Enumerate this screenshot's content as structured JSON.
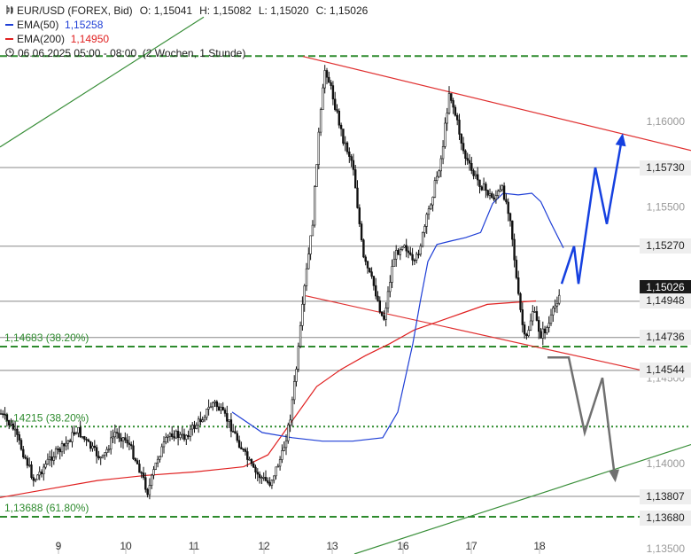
{
  "header": {
    "symbol": "EUR/USD (FOREX, Bid)",
    "ohlc": [
      {
        "k": "O:",
        "v": "1,15041"
      },
      {
        "k": "H:",
        "v": "1,15082"
      },
      {
        "k": "L:",
        "v": "1,15020"
      },
      {
        "k": "C:",
        "v": "1,15026"
      }
    ],
    "ema50_label": "EMA(50)",
    "ema50_value": "1,15258",
    "ema200_label": "EMA(200)",
    "ema200_value": "1,14950",
    "period": "06.06.2025 05:00 - 08:00",
    "range": "(2 Wochen, 1 Stunde)"
  },
  "colors": {
    "price": "#111111",
    "ema50": "#1f3fd6",
    "ema200": "#e02020",
    "fib": "#2e8b2e",
    "projection_up": "#1540e0",
    "projection_down": "#707070",
    "hline": "#888888",
    "trend_green": "#3a8f3a",
    "trend_red": "#e03030"
  },
  "chart_data": {
    "type": "candlestick",
    "x_ticks": [
      "9",
      "10",
      "11",
      "12",
      "13",
      "16",
      "17",
      "18"
    ],
    "y_ticks": [
      "1,16000",
      "1,15500",
      "1,14500",
      "1,14000",
      "1,13500"
    ],
    "y_range": [
      1.1347,
      1.1671
    ],
    "price_path": [
      [
        0,
        1.1429
      ],
      [
        0.5,
        1.142
      ],
      [
        1.0,
        1.1402
      ],
      [
        1.3,
        1.139
      ],
      [
        1.6,
        1.1396
      ],
      [
        2.0,
        1.1404
      ],
      [
        2.5,
        1.141
      ],
      [
        3.0,
        1.142
      ],
      [
        3.5,
        1.141
      ],
      [
        4.0,
        1.1402
      ],
      [
        4.5,
        1.1418
      ],
      [
        5.0,
        1.1413
      ],
      [
        5.5,
        1.1396
      ],
      [
        5.8,
        1.1383
      ],
      [
        6.2,
        1.1404
      ],
      [
        6.7,
        1.1418
      ],
      [
        7.2,
        1.1415
      ],
      [
        7.8,
        1.1424
      ],
      [
        8.4,
        1.1436
      ],
      [
        9.0,
        1.1424
      ],
      [
        9.6,
        1.1406
      ],
      [
        10.0,
        1.1395
      ],
      [
        10.6,
        1.1388
      ],
      [
        11.1,
        1.1405
      ],
      [
        11.4,
        1.1425
      ],
      [
        11.7,
        1.146
      ],
      [
        12.0,
        1.1505
      ],
      [
        12.3,
        1.154
      ],
      [
        12.5,
        1.1585
      ],
      [
        12.8,
        1.1632
      ],
      [
        13.1,
        1.1615
      ],
      [
        13.5,
        1.159
      ],
      [
        13.9,
        1.1575
      ],
      [
        14.3,
        1.152
      ],
      [
        14.7,
        1.1505
      ],
      [
        15.1,
        1.1483
      ],
      [
        15.5,
        1.152
      ],
      [
        15.9,
        1.153
      ],
      [
        16.3,
        1.1515
      ],
      [
        16.6,
        1.153
      ],
      [
        17.0,
        1.1555
      ],
      [
        17.4,
        1.158
      ],
      [
        17.7,
        1.1618
      ],
      [
        18.0,
        1.16
      ],
      [
        18.3,
        1.158
      ],
      [
        18.6,
        1.157
      ],
      [
        19.0,
        1.1562
      ],
      [
        19.4,
        1.1555
      ],
      [
        19.8,
        1.156
      ],
      [
        20.1,
        1.1545
      ],
      [
        20.4,
        1.15
      ],
      [
        20.7,
        1.147
      ],
      [
        21.0,
        1.149
      ],
      [
        21.3,
        1.1475
      ],
      [
        21.6,
        1.148
      ],
      [
        21.9,
        1.1493
      ],
      [
        22.1,
        1.1503
      ]
    ],
    "candle_range_x": [
      1,
      633
    ],
    "ema50_path": [
      [
        0,
        1.143
      ],
      [
        2.0,
        1.1418
      ],
      [
        4.0,
        1.1415
      ],
      [
        6.0,
        1.1413
      ],
      [
        8.0,
        1.1413
      ],
      [
        10.0,
        1.1415
      ],
      [
        11.0,
        1.143
      ],
      [
        12.0,
        1.147
      ],
      [
        12.5,
        1.1495
      ],
      [
        13.0,
        1.1518
      ],
      [
        13.6,
        1.1528
      ],
      [
        14.5,
        1.153
      ],
      [
        15.5,
        1.1532
      ],
      [
        16.5,
        1.1535
      ],
      [
        17.3,
        1.1552
      ],
      [
        18.0,
        1.1558
      ],
      [
        19.0,
        1.1557
      ],
      [
        19.9,
        1.1558
      ],
      [
        20.5,
        1.1553
      ],
      [
        21.2,
        1.154
      ],
      [
        22.0,
        1.1526
      ]
    ],
    "ema50_range_x": [
      262,
      636
    ],
    "ema200_path": [
      [
        0,
        1.138
      ],
      [
        2.0,
        1.1385
      ],
      [
        4.0,
        1.139
      ],
      [
        6.0,
        1.1393
      ],
      [
        8.0,
        1.1395
      ],
      [
        10.0,
        1.1398
      ],
      [
        11.0,
        1.1405
      ],
      [
        12.0,
        1.1425
      ],
      [
        13.0,
        1.1445
      ],
      [
        14.0,
        1.1455
      ],
      [
        15.0,
        1.1463
      ],
      [
        16.0,
        1.147
      ],
      [
        17.0,
        1.1478
      ],
      [
        18.0,
        1.1483
      ],
      [
        19.0,
        1.1488
      ],
      [
        20.0,
        1.1493
      ],
      [
        21.0,
        1.1494
      ],
      [
        22.0,
        1.1495
      ]
    ],
    "ema200_range_x": [
      0,
      605
    ],
    "support_resistance": [
      1.1573,
      1.1527,
      1.14948,
      1.14736,
      1.14544,
      1.13807
    ],
    "fib_levels": [
      {
        "value": 1.14683,
        "label": "1,14683 (38.20%)"
      },
      {
        "value": 1.14215,
        "label": "1,14215 (38.20%)"
      },
      {
        "value": 1.13688,
        "label": "1,13688 (61.80%)"
      }
    ],
    "price_tags": [
      {
        "value": 1.1573,
        "text": "1,15730"
      },
      {
        "value": 1.1527,
        "text": "1,15270"
      },
      {
        "value": 1.15026,
        "text": "1,15026",
        "current": true
      },
      {
        "value": 1.14948,
        "text": "1,14948"
      },
      {
        "value": 1.14736,
        "text": "1,14736"
      },
      {
        "value": 1.14544,
        "text": "1,14544"
      },
      {
        "value": 1.13807,
        "text": "1,13807"
      },
      {
        "value": 1.1368,
        "text": "1,13680"
      }
    ],
    "trend_red_upper": [
      [
        342,
        1.1638
      ],
      [
        780,
        1.1583
      ]
    ],
    "trend_red_lower": [
      [
        345,
        1.1498
      ],
      [
        728,
        1.1454
      ]
    ],
    "trend_green_lower": [
      [
        400,
        1.1347
      ],
      [
        780,
        1.1411
      ]
    ],
    "trend_green_upper": [
      [
        0,
        1.1585
      ],
      [
        230,
        1.1661
      ]
    ],
    "projection_up": [
      [
        634,
        1.1505
      ],
      [
        648,
        1.1527
      ],
      [
        653,
        1.1505
      ],
      [
        672,
        1.1573
      ],
      [
        685,
        1.154
      ],
      [
        702,
        1.159
      ]
    ],
    "projection_down": [
      [
        618,
        1.1462
      ],
      [
        642,
        1.1462
      ],
      [
        660,
        1.1418
      ],
      [
        680,
        1.145
      ],
      [
        694,
        1.1392
      ]
    ]
  }
}
